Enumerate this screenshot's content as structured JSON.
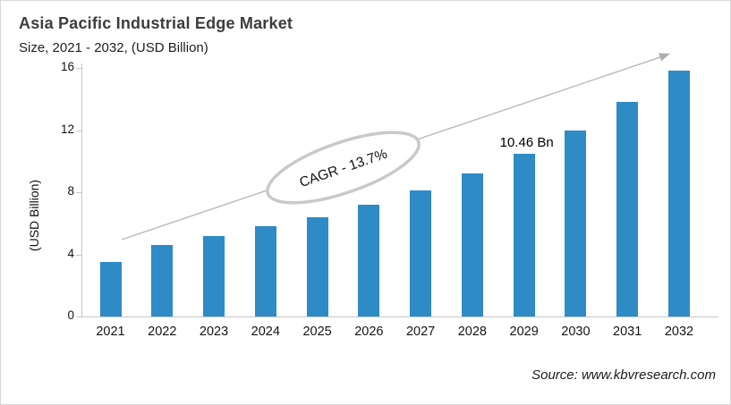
{
  "header": {
    "title": "Asia Pacific Industrial Edge Market",
    "subtitle": "Size, 2021 - 2032, (USD Billion)"
  },
  "chart_data": {
    "type": "bar",
    "title": "Asia Pacific Industrial Edge Market Size, 2021 - 2032, (USD Billion)",
    "categories": [
      "2021",
      "2022",
      "2023",
      "2024",
      "2025",
      "2026",
      "2027",
      "2028",
      "2029",
      "2030",
      "2031",
      "2032"
    ],
    "values": [
      3.5,
      4.6,
      5.2,
      5.8,
      6.4,
      7.2,
      8.1,
      9.2,
      10.46,
      12.0,
      13.8,
      15.8
    ],
    "xlabel": "",
    "ylabel": "(USD Billion)",
    "ylim": [
      0,
      16
    ],
    "yticks": [
      0,
      4,
      8,
      12,
      16
    ],
    "grid": "off",
    "legend": "none",
    "bar_color": "#2E8BC6",
    "annotations": {
      "cagr_label": "CAGR - 13.7%",
      "point_label": {
        "category": "2029",
        "text": "10.46 Bn"
      }
    }
  },
  "footer": {
    "source": "Source: www.kbvresearch.com"
  }
}
